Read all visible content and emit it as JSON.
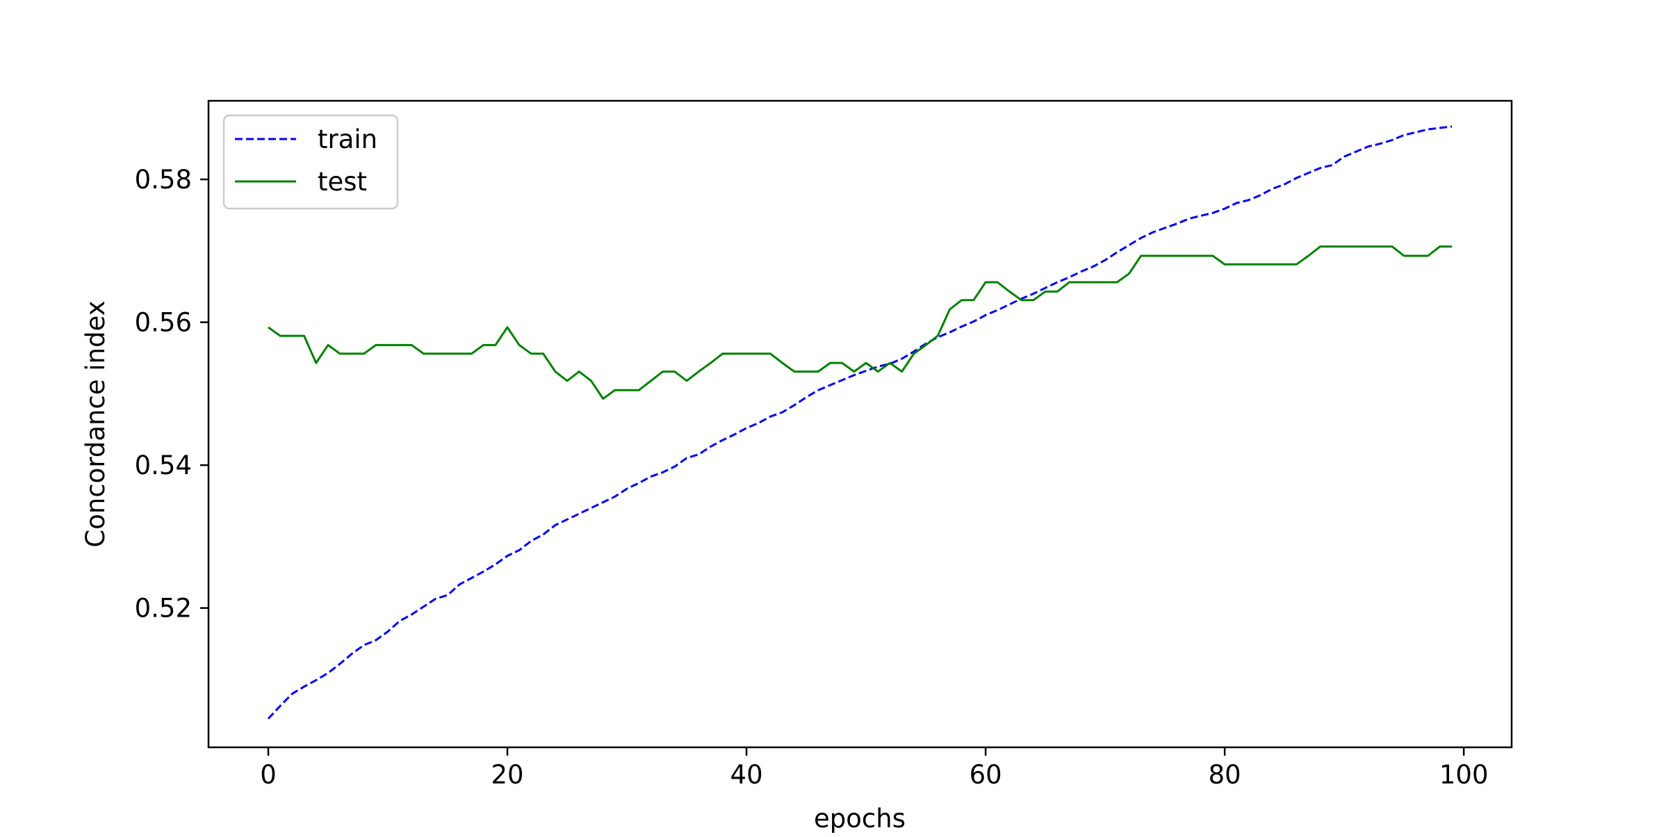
{
  "chart_data": {
    "type": "line",
    "title": "",
    "xlabel": "epochs",
    "ylabel": "Concordance index",
    "xlim": [
      -5,
      104
    ],
    "ylim": [
      0.5005,
      0.591
    ],
    "xticks": [
      0,
      20,
      40,
      60,
      80,
      100
    ],
    "yticks": [
      0.52,
      0.54,
      0.56,
      0.58
    ],
    "xtick_labels": [
      "0",
      "20",
      "40",
      "60",
      "80",
      "100"
    ],
    "ytick_labels": [
      "0.52",
      "0.54",
      "0.56",
      "0.58"
    ],
    "grid": false,
    "legend": {
      "position": "upper left"
    },
    "series": [
      {
        "name": "train",
        "color": "#0000ff",
        "style": "dashed",
        "x": [
          0,
          1,
          2,
          3,
          4,
          5,
          6,
          7,
          8,
          9,
          10,
          11,
          12,
          13,
          14,
          15,
          16,
          17,
          18,
          19,
          20,
          21,
          22,
          23,
          24,
          25,
          26,
          27,
          28,
          29,
          30,
          31,
          32,
          33,
          34,
          35,
          36,
          37,
          38,
          39,
          40,
          41,
          42,
          43,
          44,
          45,
          46,
          47,
          48,
          49,
          50,
          51,
          52,
          53,
          54,
          55,
          56,
          57,
          58,
          59,
          60,
          61,
          62,
          63,
          64,
          65,
          66,
          67,
          68,
          69,
          70,
          71,
          72,
          73,
          74,
          75,
          76,
          77,
          78,
          79,
          80,
          81,
          82,
          83,
          84,
          85,
          86,
          87,
          88,
          89,
          90,
          91,
          92,
          93,
          94,
          95,
          96,
          97,
          98,
          99
        ],
        "values": [
          0.5045,
          0.5063,
          0.508,
          0.509,
          0.5099,
          0.5109,
          0.5122,
          0.5136,
          0.5148,
          0.5155,
          0.5167,
          0.5182,
          0.5191,
          0.5202,
          0.5213,
          0.5218,
          0.5233,
          0.5242,
          0.5251,
          0.5261,
          0.5273,
          0.5281,
          0.5294,
          0.5303,
          0.5316,
          0.5324,
          0.5332,
          0.534,
          0.5348,
          0.5356,
          0.5367,
          0.5375,
          0.5384,
          0.539,
          0.5398,
          0.541,
          0.5415,
          0.5426,
          0.5435,
          0.5443,
          0.5452,
          0.5459,
          0.5468,
          0.5474,
          0.5484,
          0.5495,
          0.5505,
          0.5512,
          0.5519,
          0.5526,
          0.5532,
          0.5538,
          0.5542,
          0.5549,
          0.5559,
          0.557,
          0.5579,
          0.5586,
          0.5594,
          0.5601,
          0.561,
          0.5617,
          0.5625,
          0.5633,
          0.564,
          0.5648,
          0.5656,
          0.5663,
          0.5671,
          0.5678,
          0.5687,
          0.5698,
          0.5708,
          0.5718,
          0.5726,
          0.5732,
          0.5738,
          0.5745,
          0.5749,
          0.5753,
          0.5759,
          0.5767,
          0.5771,
          0.5778,
          0.5787,
          0.5793,
          0.5802,
          0.5809,
          0.5816,
          0.582,
          0.5832,
          0.5839,
          0.5846,
          0.585,
          0.5855,
          0.5862,
          0.5866,
          0.587,
          0.5872,
          0.5874
        ]
      },
      {
        "name": "test",
        "color": "#008000",
        "style": "solid",
        "x": [
          0,
          1,
          2,
          3,
          4,
          5,
          6,
          7,
          8,
          9,
          10,
          11,
          12,
          13,
          14,
          15,
          16,
          17,
          18,
          19,
          20,
          21,
          22,
          23,
          24,
          25,
          26,
          27,
          28,
          29,
          30,
          31,
          32,
          33,
          34,
          35,
          36,
          37,
          38,
          39,
          40,
          41,
          42,
          43,
          44,
          45,
          46,
          47,
          48,
          49,
          50,
          51,
          52,
          53,
          54,
          55,
          56,
          57,
          58,
          59,
          60,
          61,
          62,
          63,
          64,
          65,
          66,
          67,
          68,
          69,
          70,
          71,
          72,
          73,
          74,
          75,
          76,
          77,
          78,
          79,
          80,
          81,
          82,
          83,
          84,
          85,
          86,
          87,
          88,
          89,
          90,
          91,
          92,
          93,
          94,
          95,
          96,
          97,
          98,
          99
        ],
        "values": [
          0.5593,
          0.5581,
          0.5581,
          0.5581,
          0.5543,
          0.5568,
          0.5556,
          0.5556,
          0.5556,
          0.5568,
          0.5568,
          0.5568,
          0.5568,
          0.5556,
          0.5556,
          0.5556,
          0.5556,
          0.5556,
          0.5568,
          0.5568,
          0.5593,
          0.5568,
          0.5556,
          0.5556,
          0.5531,
          0.5518,
          0.5531,
          0.5518,
          0.5493,
          0.5505,
          0.5505,
          0.5505,
          0.5518,
          0.5531,
          0.5531,
          0.5518,
          0.5531,
          0.5543,
          0.5556,
          0.5556,
          0.5556,
          0.5556,
          0.5556,
          0.5543,
          0.5531,
          0.5531,
          0.5531,
          0.5543,
          0.5543,
          0.5531,
          0.5543,
          0.5531,
          0.5543,
          0.5531,
          0.5556,
          0.5568,
          0.5581,
          0.5618,
          0.5631,
          0.5631,
          0.5656,
          0.5656,
          0.5643,
          0.5631,
          0.5631,
          0.5643,
          0.5643,
          0.5656,
          0.5656,
          0.5656,
          0.5656,
          0.5656,
          0.5668,
          0.5693,
          0.5693,
          0.5693,
          0.5693,
          0.5693,
          0.5693,
          0.5693,
          0.5681,
          0.5681,
          0.5681,
          0.5681,
          0.5681,
          0.5681,
          0.5681,
          0.5693,
          0.5706,
          0.5706,
          0.5706,
          0.5706,
          0.5706,
          0.5706,
          0.5706,
          0.5693,
          0.5693,
          0.5693,
          0.5706,
          0.5706
        ]
      }
    ]
  }
}
